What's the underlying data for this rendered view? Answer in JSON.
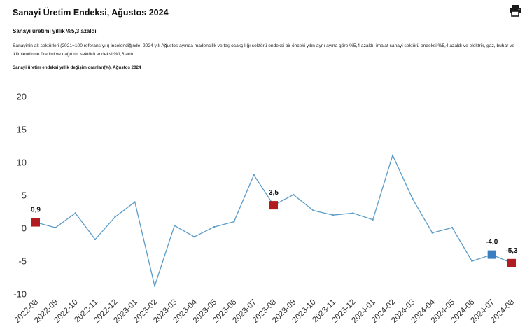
{
  "page": {
    "title": "Sanayi Üretim Endeksi, Ağustos 2024",
    "subtitle": "Sanayi üretimi yıllık %5,3 azaldı",
    "paragraph": "Sanayinin alt sektörleri (2021=100 referans yılı) incelendiğinde, 2024 yılı Ağustos ayında madencilik ve taş ocakçılığı sektörü endeksi bir önceki yılın aynı ayına göre %5,4 azaldı, imalat sanayi sektörü endeksi %5,4 azaldı ve elektrik, gaz, buhar ve iklimlendirme üretimi ve dağıtımı sektörü endeksi %1,6 arttı.",
    "chart_title": "Sanayi üretim endeksi yıllık değişim oranları(%), Ağustos 2024",
    "print_icon": "printer-icon"
  },
  "chart_data": {
    "type": "line",
    "title": "Sanayi üretim endeksi yıllık değişim oranları(%), Ağustos 2024",
    "xlabel": "",
    "ylabel": "",
    "ylim": [
      -10,
      20
    ],
    "yticks": [
      -10,
      -5,
      0,
      5,
      10,
      15,
      20
    ],
    "grid": false,
    "line_color": "#5b9bc8",
    "categories": [
      "2022-08",
      "2022-09",
      "2022-10",
      "2022-11",
      "2022-12",
      "2023-01",
      "2023-02",
      "2023-03",
      "2023-04",
      "2023-05",
      "2023-06",
      "2023-07",
      "2023-08",
      "2023-09",
      "2023-10",
      "2023-11",
      "2023-12",
      "2024-01",
      "2024-02",
      "2024-03",
      "2024-04",
      "2024-05",
      "2024-06",
      "2024-07",
      "2024-08"
    ],
    "values": [
      0.9,
      0.1,
      2.3,
      -1.7,
      1.7,
      4.0,
      -8.8,
      0.4,
      -1.3,
      0.2,
      1.0,
      8.1,
      3.5,
      5.1,
      2.7,
      2.0,
      2.3,
      1.3,
      11.1,
      4.5,
      -0.7,
      0.1,
      -5.0,
      -4.0,
      -5.3
    ],
    "highlights": [
      {
        "category": "2022-08",
        "value": 0.9,
        "label": "0,9",
        "color": "#b01c20"
      },
      {
        "category": "2023-08",
        "value": 3.5,
        "label": "3,5",
        "color": "#b01c20"
      },
      {
        "category": "2024-07",
        "value": -4.0,
        "label": "-4,0",
        "color": "#3a7fc0"
      },
      {
        "category": "2024-08",
        "value": -5.3,
        "label": "-5,3",
        "color": "#b01c20"
      }
    ]
  }
}
